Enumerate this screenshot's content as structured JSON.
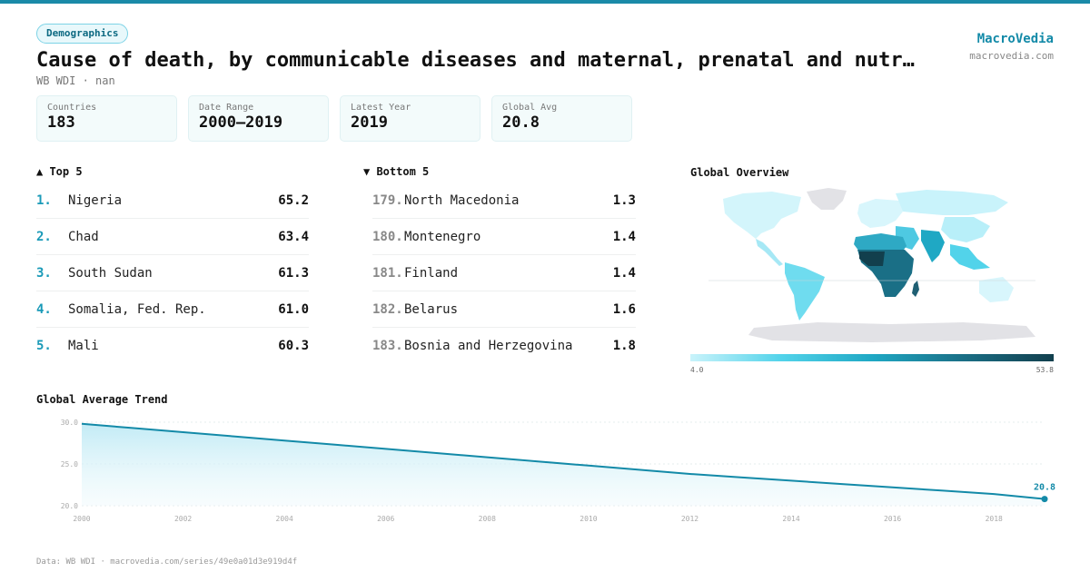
{
  "header": {
    "badge": "Demographics",
    "title": "Cause of death, by communicable diseases and maternal, prenatal and nutr…",
    "subtitle": "WB WDI · nan",
    "brand": "MacroVedia",
    "brand_url": "macrovedia.com"
  },
  "stats": [
    {
      "label": "Countries",
      "value": "183"
    },
    {
      "label": "Date Range",
      "value": "2000–2019"
    },
    {
      "label": "Latest Year",
      "value": "2019"
    },
    {
      "label": "Global Avg",
      "value": "20.8"
    }
  ],
  "top5": {
    "title": "▲ Top 5",
    "items": [
      {
        "rank": "1.",
        "name": "Nigeria",
        "value": "65.2"
      },
      {
        "rank": "2.",
        "name": "Chad",
        "value": "63.4"
      },
      {
        "rank": "3.",
        "name": "South Sudan",
        "value": "61.3"
      },
      {
        "rank": "4.",
        "name": "Somalia, Fed. Rep.",
        "value": "61.0"
      },
      {
        "rank": "5.",
        "name": "Mali",
        "value": "60.3"
      }
    ]
  },
  "bottom5": {
    "title": "▼ Bottom 5",
    "items": [
      {
        "rank": "179.",
        "name": "North Macedonia",
        "value": "1.3"
      },
      {
        "rank": "180.",
        "name": "Montenegro",
        "value": "1.4"
      },
      {
        "rank": "181.",
        "name": "Finland",
        "value": "1.4"
      },
      {
        "rank": "182.",
        "name": "Belarus",
        "value": "1.6"
      },
      {
        "rank": "183.",
        "name": "Bosnia and Herzegovina",
        "value": "1.8"
      }
    ]
  },
  "map": {
    "title": "Global Overview",
    "legend_min": "4.0",
    "legend_max": "53.8",
    "colors": [
      "#c9f3fb",
      "#52d3ea",
      "#1fa8c4",
      "#1a6f86",
      "#123f4d"
    ],
    "no_data_color": "#e2e2e6"
  },
  "trend": {
    "title": "Global Average Trend",
    "end_label": "20.8",
    "line_color": "#138aa8"
  },
  "chart_data": {
    "type": "area",
    "x": [
      2000,
      2001,
      2002,
      2003,
      2004,
      2005,
      2006,
      2007,
      2008,
      2009,
      2010,
      2011,
      2012,
      2013,
      2014,
      2015,
      2016,
      2017,
      2018,
      2019
    ],
    "y": [
      29.8,
      29.3,
      28.8,
      28.3,
      27.8,
      27.3,
      26.8,
      26.3,
      25.8,
      25.3,
      24.8,
      24.3,
      23.8,
      23.4,
      23.0,
      22.6,
      22.2,
      21.8,
      21.4,
      20.8
    ],
    "x_ticks": [
      "2000",
      "2002",
      "2004",
      "2006",
      "2008",
      "2010",
      "2012",
      "2014",
      "2016",
      "2018"
    ],
    "y_ticks": [
      "20.0",
      "25.0",
      "30.0"
    ],
    "xlim": [
      2000,
      2019
    ],
    "ylim": [
      20,
      30
    ],
    "grid": true
  },
  "footer": "Data: WB WDI · macrovedia.com/series/49e0a01d3e919d4f"
}
